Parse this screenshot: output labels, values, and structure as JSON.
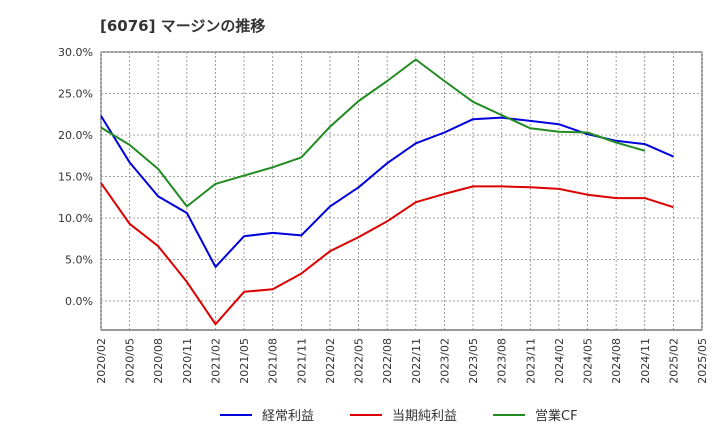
{
  "chart_data": {
    "type": "line",
    "title": "[6076]  マージンの推移",
    "xlabel": "",
    "ylabel": "",
    "ylim": [
      -3.5,
      30
    ],
    "y_ticks": [
      "30.0%",
      "25.0%",
      "20.0%",
      "15.0%",
      "10.0%",
      "5.0%",
      "0.0%"
    ],
    "y_tick_values": [
      30,
      25,
      20,
      15,
      10,
      5,
      0
    ],
    "x": [
      "2020/02",
      "2020/05",
      "2020/08",
      "2020/11",
      "2021/02",
      "2021/05",
      "2021/08",
      "2021/11",
      "2022/02",
      "2022/05",
      "2022/08",
      "2022/11",
      "2023/02",
      "2023/05",
      "2023/08",
      "2023/11",
      "2024/02",
      "2024/05",
      "2024/08",
      "2024/11",
      "2025/02",
      "2025/05"
    ],
    "grid": true,
    "legend_position": "bottom",
    "series": [
      {
        "name": "経常利益",
        "color": "#0000dd",
        "values": [
          22.3,
          16.7,
          12.6,
          10.6,
          4.1,
          7.8,
          8.2,
          7.9,
          11.4,
          13.7,
          16.6,
          19.0,
          20.3,
          21.9,
          22.1,
          21.7,
          21.3,
          20.1,
          19.3,
          18.9,
          17.4,
          null
        ]
      },
      {
        "name": "当期純利益",
        "color": "#dd0000",
        "values": [
          14.2,
          9.3,
          6.6,
          2.3,
          -2.8,
          1.1,
          1.4,
          3.3,
          6.0,
          7.7,
          9.6,
          11.9,
          12.9,
          13.8,
          13.8,
          13.7,
          13.5,
          12.8,
          12.4,
          12.4,
          11.3,
          null
        ]
      },
      {
        "name": "営業CF",
        "color": "#228b22",
        "values": [
          20.9,
          18.8,
          15.9,
          11.4,
          14.1,
          15.1,
          16.1,
          17.3,
          21.0,
          24.1,
          26.5,
          29.1,
          26.5,
          24.0,
          22.4,
          20.8,
          20.4,
          20.3,
          19.1,
          18.1,
          null,
          null
        ]
      }
    ]
  }
}
